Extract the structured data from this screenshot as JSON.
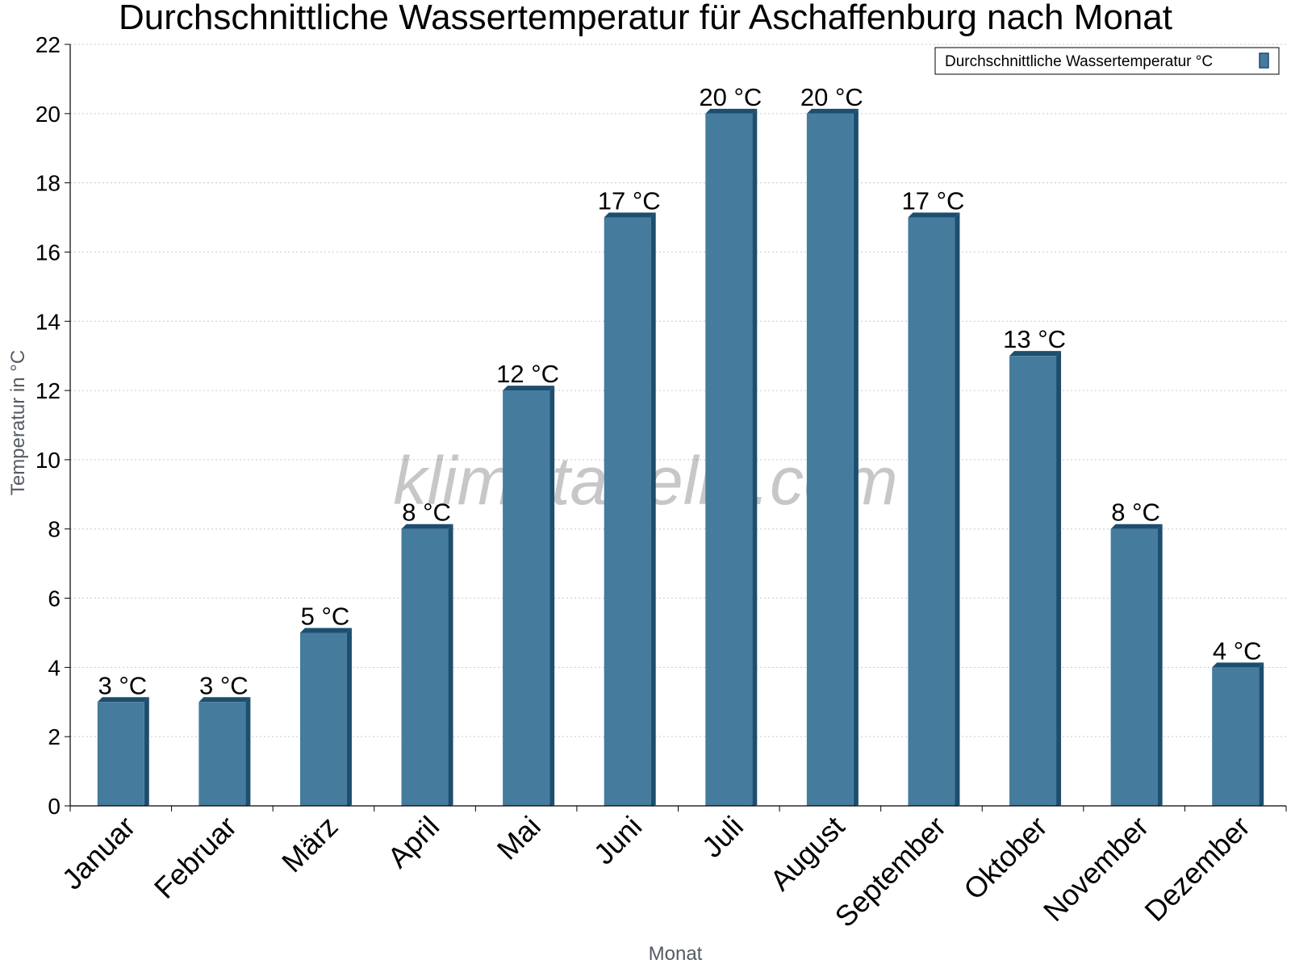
{
  "chart_data": {
    "type": "bar",
    "title": "Durchschnittliche Wassertemperatur für Aschaffenburg nach Monat",
    "xlabel": "Monat",
    "ylabel": "Temperatur in °C",
    "categories": [
      "Januar",
      "Februar",
      "März",
      "April",
      "Mai",
      "Juni",
      "Juli",
      "August",
      "September",
      "Oktober",
      "November",
      "Dezember"
    ],
    "series": [
      {
        "name": "Durchschnittliche Wassertemperatur °C",
        "values": [
          3,
          3,
          5,
          8,
          12,
          17,
          20,
          20,
          17,
          13,
          8,
          4
        ],
        "labels": [
          "3 °C",
          "3 °C",
          "5 °C",
          "8 °C",
          "12 °C",
          "17 °C",
          "20 °C",
          "20 °C",
          "17 °C",
          "13 °C",
          "8 °C",
          "4 °C"
        ]
      }
    ],
    "ylim": [
      0,
      22
    ],
    "yticks": [
      0,
      2,
      4,
      6,
      8,
      10,
      12,
      14,
      16,
      18,
      20,
      22
    ],
    "grid": true,
    "legend_position": "top-right",
    "watermark": "klimatabelle.com",
    "colors": {
      "bar_face": "#457b9d",
      "bar_side": "#1d4e6e",
      "grid": "#c8c8c8",
      "axis": "#000000",
      "axis_title": "#555b63"
    }
  }
}
